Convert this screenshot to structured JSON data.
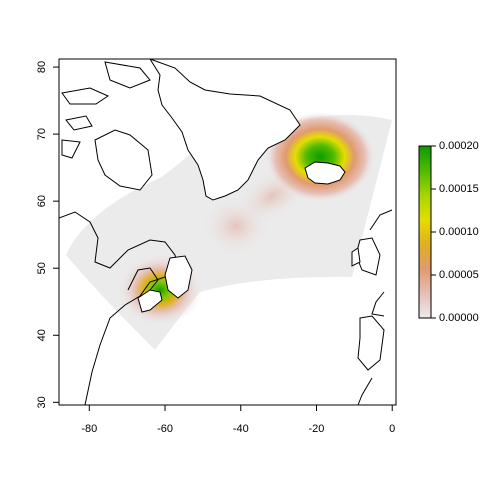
{
  "map": {
    "xlim": [
      -88,
      1
    ],
    "ylim": [
      29.6,
      81.2
    ],
    "x_ticks": [
      {
        "value": -80,
        "label": "-80"
      },
      {
        "value": -60,
        "label": "-60"
      },
      {
        "value": -40,
        "label": "-40"
      },
      {
        "value": -20,
        "label": "-20"
      },
      {
        "value": 0,
        "label": "0"
      }
    ],
    "y_ticks": [
      {
        "value": 30,
        "label": "30"
      },
      {
        "value": 40,
        "label": "40"
      },
      {
        "value": 50,
        "label": "50"
      },
      {
        "value": 60,
        "label": "60"
      },
      {
        "value": 70,
        "label": "70"
      },
      {
        "value": 80,
        "label": "80"
      }
    ],
    "study_area_color": "#ebebeb",
    "density_hotspots": [
      {
        "lon": -18,
        "lat": 67.5,
        "peak": 0.0002
      },
      {
        "lon": -62,
        "lat": 47.5,
        "peak": 0.00019
      },
      {
        "lon": -43,
        "lat": 58,
        "peak": 2e-05
      }
    ]
  },
  "legend": {
    "range": [
      0,
      0.0002
    ],
    "ticks": [
      {
        "value": 0.0,
        "label": "0.00000"
      },
      {
        "value": 5e-05,
        "label": "0.00005"
      },
      {
        "value": 0.0001,
        "label": "0.00010"
      },
      {
        "value": 0.00015,
        "label": "0.00015"
      },
      {
        "value": 0.0002,
        "label": "0.00020"
      }
    ],
    "colors": [
      "#ebebeb",
      "#e6bfb6",
      "#e19a6e",
      "#dfb020",
      "#e5dd00",
      "#a6d600",
      "#4fba00",
      "#0e9a00"
    ]
  }
}
